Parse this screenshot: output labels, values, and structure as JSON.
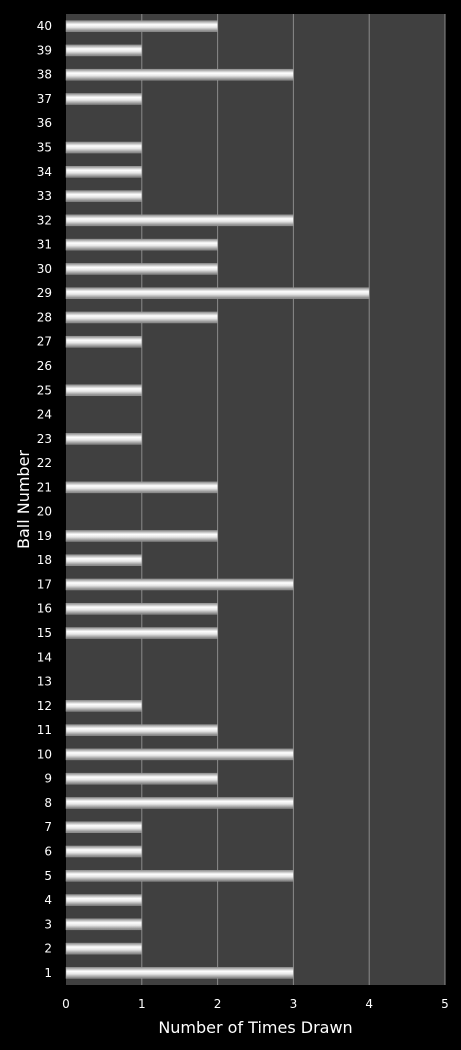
{
  "chart_data": {
    "type": "bar",
    "orientation": "horizontal",
    "categories": [
      "1",
      "2",
      "3",
      "4",
      "5",
      "6",
      "7",
      "8",
      "9",
      "10",
      "11",
      "12",
      "13",
      "14",
      "15",
      "16",
      "17",
      "18",
      "19",
      "20",
      "21",
      "22",
      "23",
      "24",
      "25",
      "26",
      "27",
      "28",
      "29",
      "30",
      "31",
      "32",
      "33",
      "34",
      "35",
      "36",
      "37",
      "38",
      "39",
      "40"
    ],
    "values": [
      3,
      1,
      1,
      1,
      3,
      1,
      1,
      3,
      2,
      3,
      2,
      1,
      0,
      0,
      2,
      2,
      3,
      1,
      2,
      0,
      2,
      0,
      1,
      0,
      1,
      0,
      1,
      2,
      4,
      2,
      2,
      3,
      1,
      1,
      1,
      0,
      1,
      3,
      1,
      2
    ],
    "xlabel": "Number of Times Drawn",
    "ylabel": "Ball Number",
    "xlim": [
      0,
      5
    ],
    "xticks": [
      0,
      1,
      2,
      3,
      4,
      5
    ],
    "grid": true,
    "legend": "none",
    "colors": {
      "background": "#000000",
      "plot_area": "#404040",
      "gridline": "#8a8a8a",
      "bar": "#e8e8e8",
      "text": "#ffffff"
    }
  }
}
